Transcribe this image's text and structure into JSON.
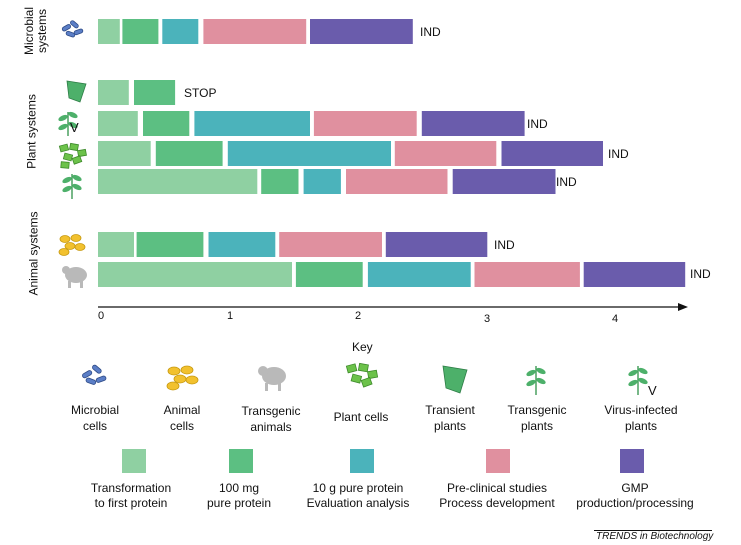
{
  "groups": [
    {
      "line1": "Microbial",
      "line2": "systems"
    },
    {
      "line1": "Plant systems"
    },
    {
      "line1": "Animal systems"
    }
  ],
  "rows": {
    "virus_marker": "V",
    "ends": [
      "IND",
      "STOP",
      "IND",
      "IND",
      "IND",
      "IND",
      "IND"
    ]
  },
  "axis": {
    "ticks": [
      "0",
      "1",
      "2",
      "3",
      "4"
    ]
  },
  "chart_data": {
    "type": "gantt",
    "x": {
      "min": 0,
      "max": 4.5,
      "ticks": [
        0,
        1,
        2,
        3,
        4
      ]
    },
    "stage_colors": [
      "#8fd0a2",
      "#5cbf82",
      "#4bb3bb",
      "#e0909f",
      "#6a5cac"
    ],
    "rows": [
      {
        "system": "Microbial cells",
        "end": "IND",
        "segments": [
          [
            0,
            0.17,
            1
          ],
          [
            0.19,
            0.47,
            2
          ],
          [
            0.5,
            0.78,
            3
          ],
          [
            0.82,
            1.62,
            4
          ],
          [
            1.65,
            2.45,
            5
          ]
        ]
      },
      {
        "system": "Transient plants",
        "end": "STOP",
        "segments": [
          [
            0,
            0.24,
            1
          ],
          [
            0.28,
            0.6,
            2
          ]
        ]
      },
      {
        "system": "Virus-infected plants",
        "end": "IND",
        "segments": [
          [
            0,
            0.31,
            1
          ],
          [
            0.35,
            0.71,
            2
          ],
          [
            0.75,
            1.65,
            3
          ],
          [
            1.68,
            2.48,
            4
          ],
          [
            2.52,
            3.32,
            5
          ]
        ]
      },
      {
        "system": "Plant cells",
        "end": "IND",
        "segments": [
          [
            0,
            0.41,
            1
          ],
          [
            0.45,
            0.97,
            2
          ],
          [
            1.01,
            2.28,
            3
          ],
          [
            2.31,
            3.1,
            4
          ],
          [
            3.14,
            3.93,
            5
          ]
        ]
      },
      {
        "system": "Transgenic plants",
        "end": "IND",
        "segments": [
          [
            0,
            1.24,
            1
          ],
          [
            1.27,
            1.56,
            2
          ],
          [
            1.6,
            1.89,
            3
          ],
          [
            1.93,
            2.72,
            4
          ],
          [
            2.76,
            3.56,
            5
          ]
        ]
      },
      {
        "system": "Animal cells",
        "end": "IND",
        "segments": [
          [
            0,
            0.28,
            1
          ],
          [
            0.3,
            0.82,
            2
          ],
          [
            0.86,
            1.38,
            3
          ],
          [
            1.41,
            2.21,
            4
          ],
          [
            2.24,
            3.03,
            5
          ]
        ]
      },
      {
        "system": "Transgenic animals",
        "end": "IND",
        "segments": [
          [
            0,
            1.51,
            1
          ],
          [
            1.54,
            2.06,
            2
          ],
          [
            2.1,
            2.9,
            3
          ],
          [
            2.93,
            3.75,
            4
          ],
          [
            3.78,
            4.57,
            5
          ]
        ]
      }
    ]
  },
  "key": {
    "title": "Key",
    "virus_marker": "V",
    "icons": [
      {
        "line1": "Microbial",
        "line2": "cells"
      },
      {
        "line1": "Animal",
        "line2": "cells"
      },
      {
        "line1": "Transgenic",
        "line2": "animals"
      },
      {
        "line1": "Plant cells"
      },
      {
        "line1": "Transient",
        "line2": "plants"
      },
      {
        "line1": "Transgenic",
        "line2": "plants"
      },
      {
        "line1": "Virus-infected",
        "line2": "plants"
      }
    ],
    "stages": [
      {
        "line1": "Transformation",
        "line2": "to first protein"
      },
      {
        "line1": "100 mg",
        "line2": "pure protein"
      },
      {
        "line1": "10 g pure protein",
        "line2": "Evaluation analysis"
      },
      {
        "line1": "Pre-clinical studies",
        "line2": "Process development"
      },
      {
        "line1": "GMP",
        "line2": "production/processing"
      }
    ]
  },
  "footer": {
    "credit": "TRENDS in Biotechnology"
  }
}
